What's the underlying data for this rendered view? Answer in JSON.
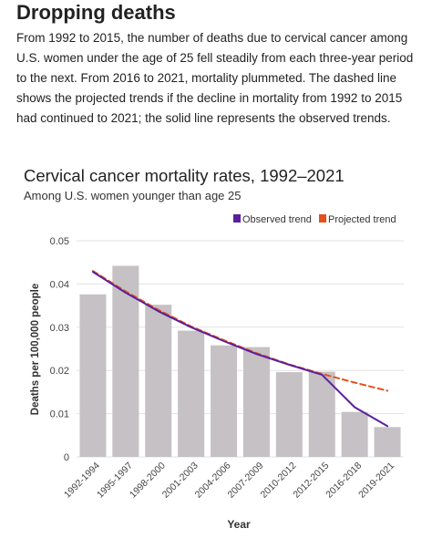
{
  "article": {
    "heading": "Dropping deaths",
    "intro": "From 1992 to 2015, the number of deaths due to cervical cancer among U.S. women under the age of 25 fell steadily from each three-year period to the next. From 2016 to 2021, mortality plummeted. The dashed line shows the projected trends if the decline in mortality from 1992 to 2015 had continued to 2021; the solid line represents the observed trends."
  },
  "chart_data": {
    "type": "bar",
    "title": "Cervical cancer mortality rates, 1992–2021",
    "subtitle": "Among U.S. women younger than age 25",
    "xlabel": "Year",
    "ylabel": "Deaths per 100,000 people",
    "ylim": [
      0,
      0.05
    ],
    "yticks": [
      0,
      0.01,
      0.02,
      0.03,
      0.04,
      0.05
    ],
    "ytick_labels": [
      "0",
      "0.01",
      "0.02",
      "0.03",
      "0.04",
      "0.05"
    ],
    "grid": true,
    "legend_position": "top-right",
    "categories": [
      "1992-1994",
      "1995-1997",
      "1998-2000",
      "2001-2003",
      "2004-2006",
      "2007-2009",
      "2010-2012",
      "2012-2015",
      "2016-2018",
      "2019-2021"
    ],
    "values": [
      0.0376,
      0.0442,
      0.0352,
      0.0292,
      0.0258,
      0.0254,
      0.0196,
      0.0197,
      0.0104,
      0.0069
    ],
    "series": [
      {
        "name": "Observed trend",
        "style": "solid",
        "color": "#5b1f9e",
        "values": [
          0.0428,
          0.038,
          0.0337,
          0.03,
          0.0268,
          0.0238,
          0.0213,
          0.019,
          0.0115,
          0.0071
        ]
      },
      {
        "name": "Projected trend",
        "style": "dashed",
        "color": "#e4501b",
        "values": [
          0.043,
          0.0383,
          0.034,
          0.0302,
          0.027,
          0.024,
          0.0214,
          0.0192,
          0.0172,
          0.0153
        ]
      }
    ],
    "colors": {
      "bar": "#c5c1c4",
      "grid": "#e2e2e2",
      "axis_text": "#444444"
    }
  }
}
